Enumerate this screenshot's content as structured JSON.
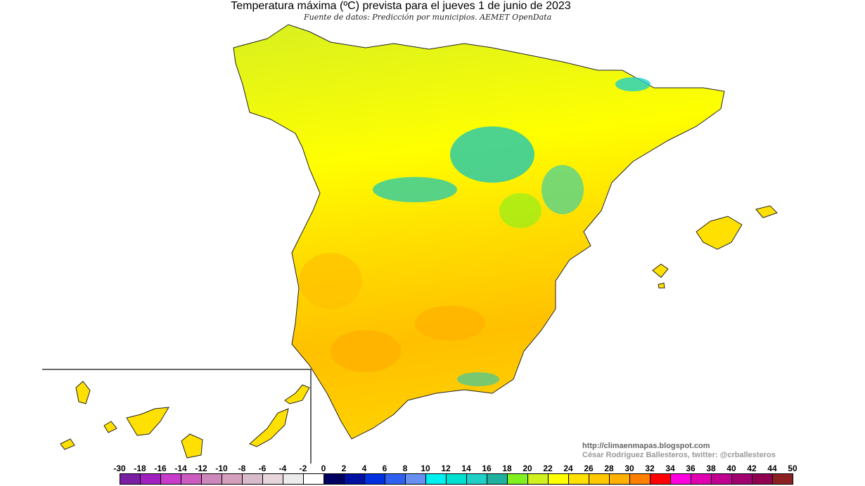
{
  "title": "Temperatura máxima (ºC) prevista para el jueves 1 de junio de 2023",
  "subtitle": "Fuente de datos: Predicción por municipios. AEMET OpenData",
  "credits": {
    "url": "http://climaenmapas.blogspot.com",
    "author": "César Rodríguez Ballesteros, twitter: @crballesteros"
  },
  "legend": {
    "labels": [
      "-30",
      "-18",
      "-16",
      "-14",
      "-12",
      "-10",
      "-8",
      "-6",
      "-4",
      "-2",
      "0",
      "2",
      "4",
      "6",
      "8",
      "10",
      "12",
      "14",
      "16",
      "18",
      "20",
      "22",
      "24",
      "26",
      "28",
      "30",
      "32",
      "34",
      "36",
      "38",
      "40",
      "42",
      "44",
      "50"
    ],
    "colors": [
      "#7a1fa2",
      "#a020c0",
      "#c83ccc",
      "#cc5cbf",
      "#cc88bb",
      "#d4a0bc",
      "#d8bccc",
      "#e6d6dc",
      "#ececec",
      "#ffffff",
      "#000060",
      "#0010a0",
      "#0030e0",
      "#3060f0",
      "#6890f0",
      "#00f0f0",
      "#00e0d0",
      "#20d0c8",
      "#20b0a0",
      "#80f020",
      "#d0f020",
      "#ffff00",
      "#ffe000",
      "#ffc800",
      "#ffb000",
      "#ff8000",
      "#ff0000",
      "#ff00e0",
      "#e000b0",
      "#c00090",
      "#a00070",
      "#900050",
      "#8c2020"
    ]
  }
}
